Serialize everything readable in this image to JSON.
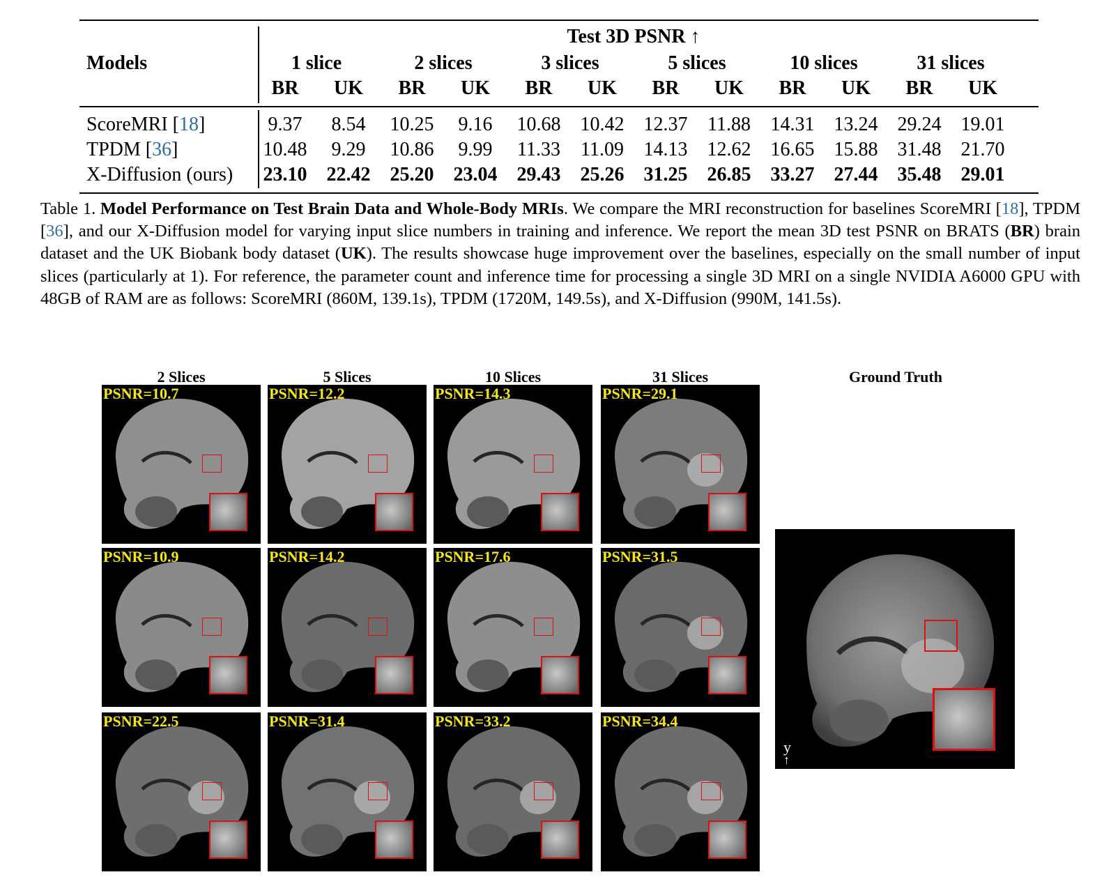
{
  "table": {
    "models_header": "Models",
    "metric_header": "Test 3D PSNR ↑",
    "slice_groups": [
      "1 slice",
      "2 slices",
      "3 slices",
      "5 slices",
      "10 slices",
      "31 slices"
    ],
    "sub_headers": [
      "BR",
      "UK",
      "BR",
      "UK",
      "BR",
      "UK",
      "BR",
      "UK",
      "BR",
      "UK",
      "BR",
      "UK"
    ],
    "rows": [
      {
        "name": "ScoreMRI [",
        "cite": "18",
        "close": "]",
        "bold": false,
        "values": [
          "9.37",
          "8.54",
          "10.25",
          "9.16",
          "10.68",
          "10.42",
          "12.37",
          "11.88",
          "14.31",
          "13.24",
          "29.24",
          "19.01"
        ]
      },
      {
        "name": "TPDM [",
        "cite": "36",
        "close": "]",
        "bold": false,
        "values": [
          "10.48",
          "9.29",
          "10.86",
          "9.99",
          "11.33",
          "11.09",
          "14.13",
          "12.62",
          "16.65",
          "15.88",
          "31.48",
          "21.70"
        ]
      },
      {
        "name": "X-Diffusion (ours)",
        "cite": "",
        "close": "",
        "bold": true,
        "values": [
          "23.10",
          "22.42",
          "25.20",
          "23.04",
          "29.43",
          "25.26",
          "31.25",
          "26.85",
          "33.27",
          "27.44",
          "35.48",
          "29.01"
        ]
      }
    ]
  },
  "caption": {
    "label": "Table 1. ",
    "title": "Model Performance on Test Brain Data and Whole-Body MRIs",
    "t1": ". We compare the MRI reconstruction for baselines ScoreMRI [",
    "cite1": "18",
    "t2": "], TPDM [",
    "cite2": "36",
    "t3": "], and our X-Diffusion model for varying input slice numbers in training and inference.  We report the mean 3D test PSNR on BRATS (",
    "br": "BR",
    "t4": ") brain dataset and the UK Biobank body dataset (",
    "uk": "UK",
    "t5": "). The results showcase huge improvement over the baselines, especially on the small number of input slices (particularly at 1).  For reference, the parameter count and inference time for processing a single 3D MRI on a single NVIDIA A6000 GPU with 48GB of RAM are as follows: ScoreMRI (860M, 139.1s), TPDM (1720M, 149.5s), and X-Diffusion (990M, 141.5s)."
  },
  "figure": {
    "column_titles": [
      "2 Slices",
      "5 Slices",
      "10 Slices",
      "31 Slices",
      "Ground Truth"
    ],
    "psnr_labels": [
      [
        "PSNR=10.7",
        "PSNR=12.2",
        "PSNR=14.3",
        "PSNR=29.1"
      ],
      [
        "PSNR=10.9",
        "PSNR=14.2",
        "PSNR=17.6",
        "PSNR=31.5"
      ],
      [
        "PSNR=22.5",
        "PSNR=31.4",
        "PSNR=33.2",
        "PSNR=34.4"
      ]
    ],
    "gt_axis_label": "y",
    "gt_axis_arrow": "↑",
    "label_color": "#f5e61a",
    "roi_color": "#dd1111"
  }
}
